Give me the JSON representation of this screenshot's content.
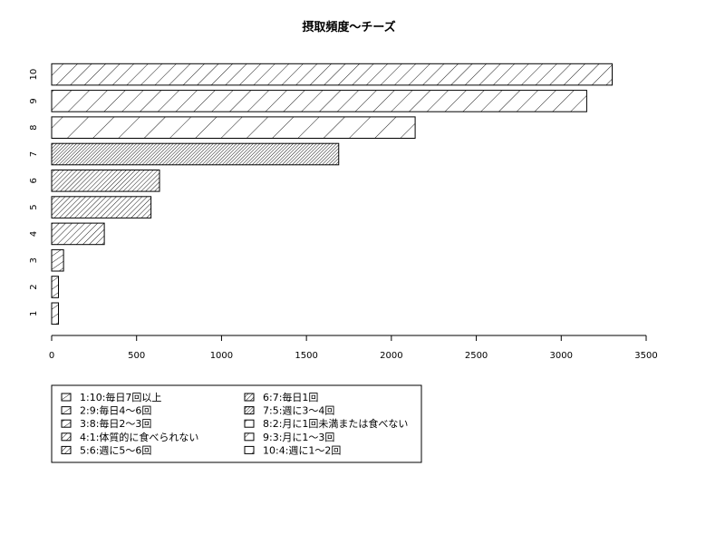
{
  "chart_data": {
    "type": "bar",
    "orientation": "horizontal",
    "title": "摂取頻度〜チーズ",
    "xlabel": "",
    "ylabel": "",
    "xlim": [
      0,
      3500
    ],
    "xticks": [
      0,
      500,
      1000,
      1500,
      2000,
      2500,
      3000,
      3500
    ],
    "grid": false,
    "categories": [
      "1",
      "2",
      "3",
      "4",
      "5",
      "6",
      "7",
      "8",
      "9",
      "10"
    ],
    "values": [
      40,
      40,
      70,
      310,
      585,
      635,
      1690,
      2140,
      3150,
      3300
    ],
    "fill": "hatched",
    "legend": {
      "position": "bottom-left",
      "entries": [
        "1:10:毎日7回以上",
        "2:9:毎日4〜6回",
        "3:8:毎日2〜3回",
        "4:1:体質的に食べられない",
        "5:6:週に5〜6回",
        "6:7:毎日1回",
        "7:5:週に3〜4回",
        "8:2:月に1回未満または食べない",
        "9:3:月に1〜3回",
        "10:4:週に1〜2回"
      ]
    }
  }
}
